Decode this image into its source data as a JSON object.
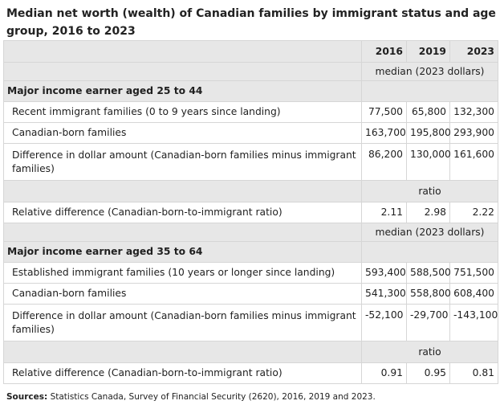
{
  "title": "Median net worth (wealth) of Canadian families by immigrant status and age group, 2016 to 2023",
  "years": [
    "2016",
    "2019",
    "2023"
  ],
  "unit_median": "median (2023 dollars)",
  "unit_ratio": "ratio",
  "section1": {
    "heading": "Major income earner aged 25 to 44",
    "rows": [
      {
        "label": "Recent immigrant families (0 to 9 years since landing)",
        "values": [
          "77,500",
          "65,800",
          "132,300"
        ]
      },
      {
        "label": "Canadian-born families",
        "values": [
          "163,700",
          "195,800",
          "293,900"
        ]
      },
      {
        "label": "Difference in dollar amount (Canadian-born families minus immigrant families)",
        "values": [
          "86,200",
          "130,000",
          "161,600"
        ]
      }
    ],
    "ratio_row": {
      "label": "Relative difference (Canadian-born-to-immigrant ratio)",
      "values": [
        "2.11",
        "2.98",
        "2.22"
      ]
    }
  },
  "section2": {
    "heading": "Major income earner aged 35 to 64",
    "rows": [
      {
        "label": "Established immigrant families (10 years or longer since landing)",
        "values": [
          "593,400",
          "588,500",
          "751,500"
        ]
      },
      {
        "label": "Canadian-born families",
        "values": [
          "541,300",
          "558,800",
          "608,400"
        ]
      },
      {
        "label": "Difference in dollar amount (Canadian-born families minus immigrant families)",
        "values": [
          "-52,100",
          "-29,700",
          "-143,100"
        ]
      }
    ],
    "ratio_row": {
      "label": "Relative difference (Canadian-born-to-immigrant ratio)",
      "values": [
        "0.91",
        "0.95",
        "0.81"
      ]
    }
  },
  "sources": {
    "label": "Sources:",
    "text": " Statistics Canada, Survey of Financial Security (2620), 2016, 2019 and 2023."
  }
}
